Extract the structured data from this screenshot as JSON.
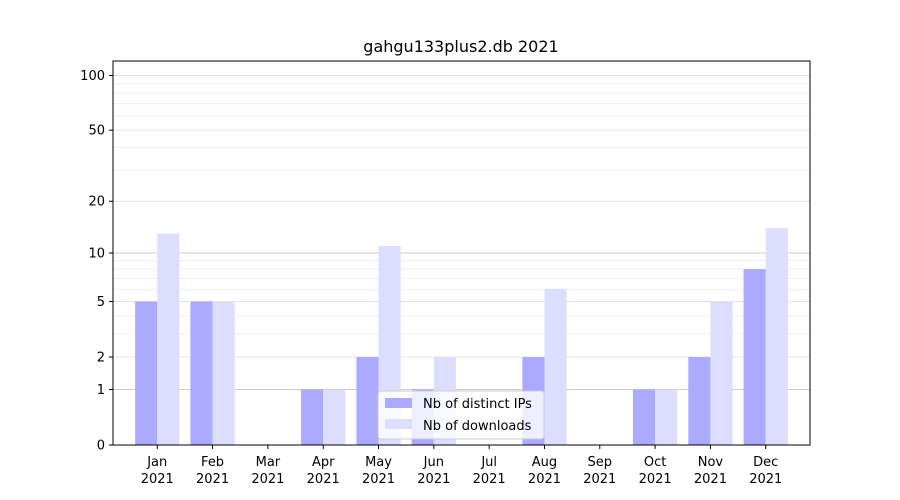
{
  "chart_data": {
    "type": "bar",
    "title": "gahgu133plus2.db 2021",
    "xlabel": "",
    "ylabel": "",
    "categories": [
      "Jan\n2021",
      "Feb\n2021",
      "Mar\n2021",
      "Apr\n2021",
      "May\n2021",
      "Jun\n2021",
      "Jul\n2021",
      "Aug\n2021",
      "Sep\n2021",
      "Oct\n2021",
      "Nov\n2021",
      "Dec\n2021"
    ],
    "category_lines": [
      [
        "Jan",
        "2021"
      ],
      [
        "Feb",
        "2021"
      ],
      [
        "Mar",
        "2021"
      ],
      [
        "Apr",
        "2021"
      ],
      [
        "May",
        "2021"
      ],
      [
        "Jun",
        "2021"
      ],
      [
        "Jul",
        "2021"
      ],
      [
        "Aug",
        "2021"
      ],
      [
        "Sep",
        "2021"
      ],
      [
        "Oct",
        "2021"
      ],
      [
        "Nov",
        "2021"
      ],
      [
        "Dec",
        "2021"
      ]
    ],
    "series": [
      {
        "name": "Nb of distinct IPs",
        "color": "#aaaaff",
        "values": [
          5,
          5,
          0,
          1,
          2,
          1,
          0,
          2,
          0,
          1,
          2,
          8
        ]
      },
      {
        "name": "Nb of downloads",
        "color": "#ddddff",
        "values": [
          13,
          5,
          0,
          1,
          11,
          2,
          0,
          6,
          0,
          1,
          5,
          14
        ]
      }
    ],
    "y_scale": "log1p",
    "ylim": [
      0,
      120
    ],
    "y_ticks": [
      0,
      1,
      2,
      5,
      10,
      20,
      50,
      100
    ],
    "y_tick_labels": [
      "0",
      "1",
      "2",
      "5",
      "10",
      "20",
      "50",
      "100"
    ],
    "grid": true,
    "legend_position": "lower-center"
  }
}
